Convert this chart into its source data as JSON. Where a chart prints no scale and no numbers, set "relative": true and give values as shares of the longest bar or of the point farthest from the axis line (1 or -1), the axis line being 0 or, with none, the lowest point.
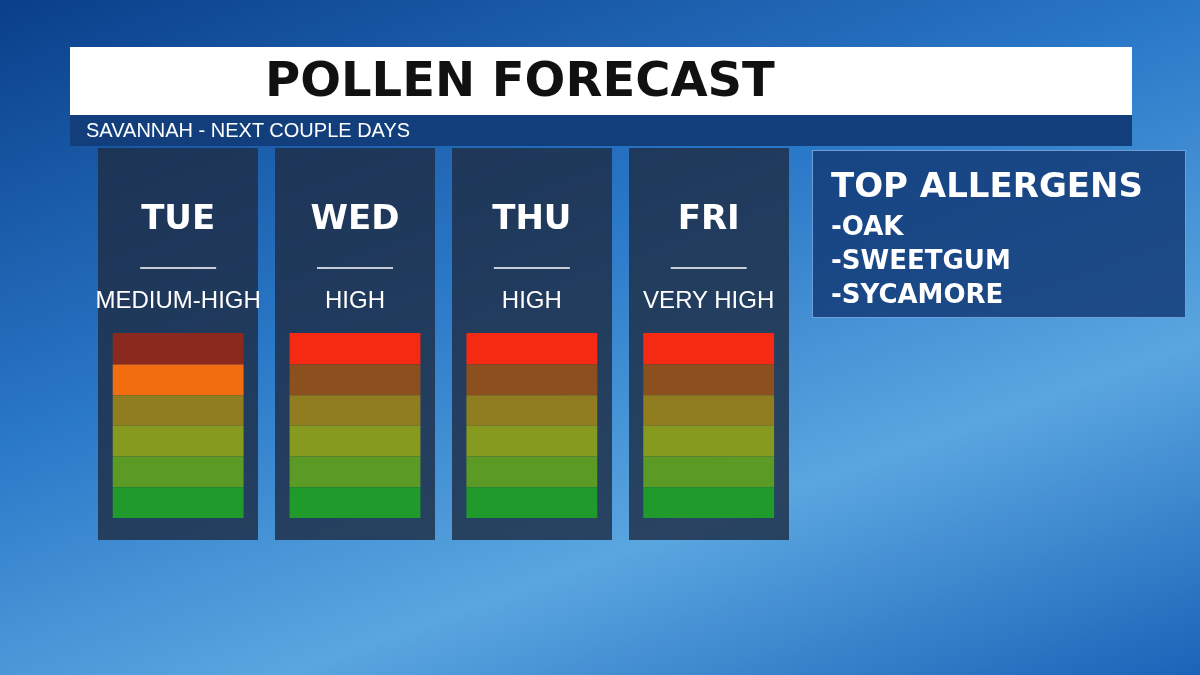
{
  "chart_data": {
    "type": "bar",
    "title": "POLLEN FORECAST",
    "subtitle": "SAVANNAH - NEXT COUPLE DAYS",
    "categories": [
      "TUE",
      "WED",
      "THU",
      "FRI"
    ],
    "stacked": true,
    "relative": true,
    "grid": false,
    "legend": false,
    "series": [
      {
        "color": "#1f9a2b",
        "values": [
          0.166,
          0.166,
          0.166,
          0.166
        ]
      },
      {
        "color": "#5b9a25",
        "values": [
          0.166,
          0.166,
          0.166,
          0.166
        ]
      },
      {
        "color": "#879a20",
        "values": [
          0.166,
          0.166,
          0.166,
          0.166
        ]
      },
      {
        "color": "#8f7d1f",
        "values": [
          0.166,
          0.166,
          0.166,
          0.166
        ]
      },
      {
        "colors": [
          "#f26d10",
          "#8c4f1e",
          "#8c4f1e",
          "#8c4f1e"
        ],
        "values": [
          0.166,
          0.166,
          0.166,
          0.166
        ]
      },
      {
        "colors": [
          "#8a2a1e",
          "#f52a12",
          "#f52a12",
          "#f52a12"
        ],
        "values": [
          0.17,
          0.17,
          0.17,
          0.17
        ]
      }
    ],
    "annotations": [
      "MEDIUM-HIGH",
      "HIGH",
      "HIGH",
      "VERY HIGH",
      "TOP ALLERGENS",
      "-OAK",
      "-SWEETGUM",
      "-SYCAMORE"
    ]
  }
}
